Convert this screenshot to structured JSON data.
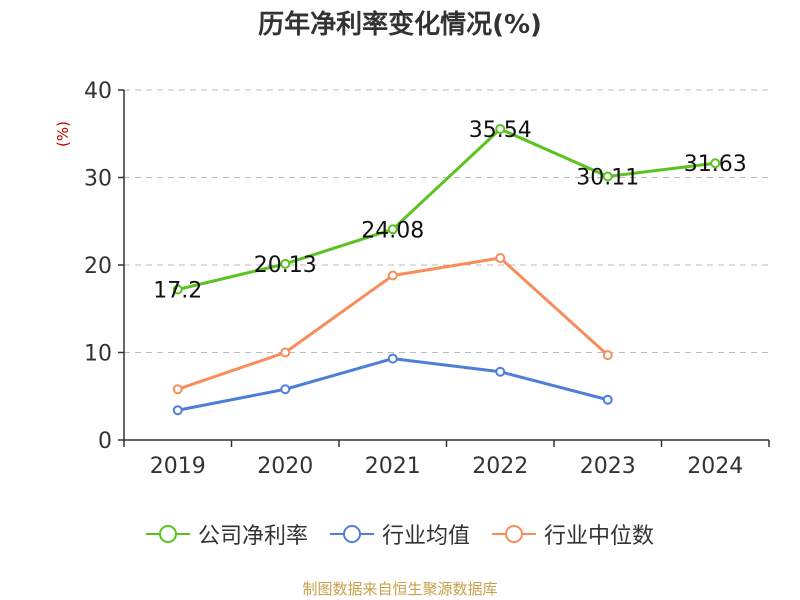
{
  "header": {
    "title": "历年净利率变化情况(%)"
  },
  "footer": {
    "source": "制图数据来自恒生聚源数据库"
  },
  "colors": {
    "company": "#5bc21f",
    "industry_avg": "#4d7fd9",
    "industry_median": "#f78d5a",
    "axis": "#333333",
    "grid": "#bbbbbb"
  },
  "chart_data": {
    "type": "line",
    "title": "历年净利率变化情况(%)",
    "ylabel": "(%)",
    "xlabel": "",
    "categories": [
      "2019",
      "2020",
      "2021",
      "2022",
      "2023",
      "2024"
    ],
    "ylim": [
      0,
      40
    ],
    "yticks": [
      0,
      10,
      20,
      30,
      40
    ],
    "grid": true,
    "legend_position": "bottom",
    "series": [
      {
        "name": "公司净利率",
        "color": "#5bc21f",
        "values": [
          17.2,
          20.13,
          24.08,
          35.54,
          30.11,
          31.63
        ],
        "labels": [
          "17.2",
          "20.13",
          "24.08",
          "35.54",
          "30.11",
          "31.63"
        ],
        "show_labels": true
      },
      {
        "name": "行业均值",
        "color": "#4d7fd9",
        "values": [
          3.4,
          5.8,
          9.3,
          7.8,
          4.6,
          null
        ],
        "show_labels": false
      },
      {
        "name": "行业中位数",
        "color": "#f78d5a",
        "values": [
          5.8,
          10.0,
          18.8,
          20.8,
          9.7,
          null
        ],
        "show_labels": false
      }
    ]
  }
}
